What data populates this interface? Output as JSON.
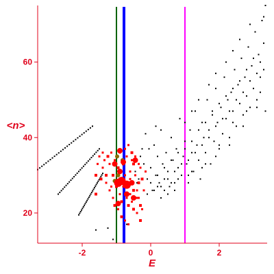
{
  "chart_data": {
    "type": "scatter",
    "title": "",
    "xlabel": "E",
    "ylabel": "<n>",
    "xlim": [
      -3.3,
      3.4
    ],
    "ylim": [
      12,
      75
    ],
    "xticks": [
      -2,
      0,
      2
    ],
    "xtick_labels": [
      "-2",
      "0",
      "2"
    ],
    "yticks": [
      20,
      40,
      60
    ],
    "ytick_labels": [
      "20",
      "40",
      "60"
    ],
    "grid": false,
    "legend": "none",
    "colors": {
      "axes": "#e0001a",
      "black_points": "#000000",
      "red_points": "#ff0000",
      "olive_points": "#8b6a00"
    },
    "vertical_lines": [
      {
        "x": -1.0,
        "color": "#006400",
        "width": "thin"
      },
      {
        "x": -0.78,
        "color": "#0000ff",
        "width": "thick"
      },
      {
        "x": 1.0,
        "color": "#ff00ff",
        "width": "thin"
      }
    ],
    "band_series": [
      {
        "color": "#000000",
        "x_start": -3.3,
        "x_end": -1.7,
        "y_start": 31.5,
        "y_end": 43
      },
      {
        "color": "#000000",
        "x_start": -2.7,
        "x_end": -1.5,
        "y_start": 25,
        "y_end": 37
      },
      {
        "color": "#000000",
        "x_start": -2.1,
        "x_end": -1.4,
        "y_start": 19.5,
        "y_end": 30.5
      }
    ],
    "black_cloud": [
      [
        -0.45,
        31
      ],
      [
        -0.4,
        28
      ],
      [
        -0.3,
        35
      ],
      [
        -0.2,
        33
      ],
      [
        -0.15,
        41
      ],
      [
        -0.1,
        29
      ],
      [
        -0.05,
        37
      ],
      [
        0.0,
        32
      ],
      [
        0.05,
        26
      ],
      [
        0.1,
        38
      ],
      [
        0.15,
        30
      ],
      [
        0.2,
        35
      ],
      [
        0.25,
        28
      ],
      [
        0.3,
        42
      ],
      [
        0.35,
        33
      ],
      [
        0.4,
        29
      ],
      [
        0.45,
        36
      ],
      [
        0.5,
        31
      ],
      [
        0.55,
        27
      ],
      [
        0.6,
        40
      ],
      [
        0.65,
        34
      ],
      [
        0.7,
        28
      ],
      [
        0.75,
        37
      ],
      [
        0.8,
        32
      ],
      [
        0.85,
        45
      ],
      [
        0.9,
        30
      ],
      [
        0.95,
        35
      ],
      [
        1.0,
        39
      ],
      [
        1.05,
        33
      ],
      [
        1.1,
        28
      ],
      [
        1.15,
        42
      ],
      [
        1.2,
        36
      ],
      [
        1.25,
        31
      ],
      [
        1.3,
        47
      ],
      [
        1.35,
        38
      ],
      [
        1.4,
        34
      ],
      [
        1.45,
        29
      ],
      [
        1.5,
        44
      ],
      [
        1.55,
        40
      ],
      [
        1.6,
        36
      ],
      [
        1.65,
        50
      ],
      [
        1.7,
        42
      ],
      [
        1.75,
        33
      ],
      [
        1.8,
        46
      ],
      [
        1.85,
        39
      ],
      [
        1.9,
        53
      ],
      [
        1.95,
        44
      ],
      [
        2.0,
        37
      ],
      [
        2.05,
        48
      ],
      [
        2.1,
        41
      ],
      [
        2.15,
        56
      ],
      [
        2.2,
        45
      ],
      [
        2.25,
        50
      ],
      [
        2.3,
        38
      ],
      [
        2.35,
        52
      ],
      [
        2.4,
        47
      ],
      [
        2.45,
        58
      ],
      [
        2.5,
        43
      ],
      [
        2.55,
        54
      ],
      [
        2.6,
        49
      ],
      [
        2.65,
        61
      ],
      [
        2.7,
        46
      ],
      [
        2.75,
        56
      ],
      [
        2.8,
        51
      ],
      [
        2.85,
        64
      ],
      [
        2.9,
        48
      ],
      [
        2.95,
        59
      ],
      [
        3.0,
        53
      ],
      [
        3.05,
        68
      ],
      [
        3.1,
        50
      ],
      [
        3.15,
        62
      ],
      [
        3.2,
        56
      ],
      [
        3.25,
        71
      ],
      [
        3.3,
        58
      ],
      [
        3.35,
        75
      ],
      [
        3.3,
        65
      ],
      [
        3.2,
        60
      ],
      [
        3.1,
        57
      ],
      [
        3.0,
        61
      ],
      [
        2.9,
        55
      ],
      [
        2.8,
        58
      ],
      [
        2.7,
        52
      ],
      [
        2.6,
        55
      ],
      [
        2.5,
        50
      ],
      [
        2.4,
        53
      ],
      [
        2.3,
        47
      ],
      [
        2.2,
        51
      ],
      [
        2.1,
        45
      ],
      [
        2.0,
        49
      ],
      [
        1.9,
        43
      ],
      [
        1.8,
        47
      ],
      [
        1.7,
        40
      ],
      [
        1.6,
        44
      ],
      [
        1.5,
        38
      ],
      [
        1.4,
        42
      ],
      [
        1.3,
        36
      ],
      [
        1.2,
        39
      ],
      [
        1.1,
        34
      ],
      [
        1.0,
        37
      ],
      [
        0.9,
        33
      ],
      [
        0.8,
        36
      ],
      [
        0.7,
        31
      ],
      [
        0.6,
        34
      ],
      [
        0.5,
        29
      ],
      [
        0.4,
        32
      ],
      [
        0.3,
        27
      ],
      [
        0.2,
        30
      ],
      [
        0.1,
        26
      ],
      [
        0.0,
        28
      ],
      [
        -0.1,
        25
      ],
      [
        0.2,
        27
      ],
      [
        0.4,
        26
      ],
      [
        0.6,
        28
      ],
      [
        0.8,
        29
      ],
      [
        1.2,
        31
      ],
      [
        1.6,
        33
      ],
      [
        2.0,
        38
      ],
      [
        2.4,
        44
      ],
      [
        2.8,
        47
      ],
      [
        3.2,
        52
      ],
      [
        0.3,
        24
      ],
      [
        0.5,
        25
      ],
      [
        0.7,
        26
      ],
      [
        1.1,
        30
      ],
      [
        1.5,
        32
      ],
      [
        1.9,
        35
      ],
      [
        2.3,
        40
      ],
      [
        2.7,
        43
      ],
      [
        3.1,
        48
      ],
      [
        3.35,
        47
      ],
      [
        2.6,
        66
      ],
      [
        2.4,
        63
      ],
      [
        2.9,
        70
      ],
      [
        3.3,
        72
      ],
      [
        2.2,
        60
      ],
      [
        1.9,
        57
      ],
      [
        1.7,
        54
      ],
      [
        1.4,
        50
      ],
      [
        1.2,
        47
      ],
      [
        1.0,
        44
      ],
      [
        -0.7,
        17
      ],
      [
        -1.1,
        13
      ],
      [
        -1.25,
        16
      ],
      [
        -1.6,
        15.5
      ],
      [
        -0.35,
        29
      ],
      [
        -0.25,
        37
      ],
      [
        0.15,
        43
      ],
      [
        -0.55,
        36
      ]
    ],
    "red_cluster": [
      [
        -1.25,
        35
      ],
      [
        -1.2,
        33
      ],
      [
        -1.15,
        36
      ],
      [
        -1.1,
        30
      ],
      [
        -1.05,
        34
      ],
      [
        -1.0,
        28
      ],
      [
        -0.95,
        32
      ],
      [
        -0.9,
        36
      ],
      [
        -0.85,
        29
      ],
      [
        -0.8,
        33
      ],
      [
        -0.75,
        30
      ],
      [
        -0.7,
        35
      ],
      [
        -0.65,
        27
      ],
      [
        -0.6,
        31
      ],
      [
        -0.55,
        34
      ],
      [
        -0.5,
        26
      ],
      [
        -0.45,
        30
      ],
      [
        -0.4,
        24
      ],
      [
        -0.35,
        28
      ],
      [
        -0.3,
        32
      ],
      [
        -0.9,
        25
      ],
      [
        -0.85,
        23
      ],
      [
        -0.8,
        27
      ],
      [
        -0.7,
        24
      ],
      [
        -0.65,
        22
      ],
      [
        -0.6,
        25
      ],
      [
        -0.55,
        23
      ],
      [
        -0.5,
        21
      ],
      [
        -0.45,
        24
      ],
      [
        -0.4,
        20
      ],
      [
        -1.0,
        27
      ],
      [
        -1.1,
        24
      ],
      [
        -1.2,
        26
      ],
      [
        -1.3,
        30
      ],
      [
        -1.35,
        34
      ],
      [
        -1.4,
        32
      ],
      [
        -1.45,
        29
      ],
      [
        -1.5,
        35
      ],
      [
        -1.55,
        33
      ],
      [
        -1.6,
        30
      ],
      [
        -0.75,
        37
      ],
      [
        -0.65,
        38
      ],
      [
        -0.55,
        36
      ],
      [
        -0.45,
        35
      ],
      [
        -0.35,
        33
      ],
      [
        -0.25,
        29
      ],
      [
        -0.2,
        26
      ],
      [
        -0.15,
        31
      ],
      [
        -0.3,
        22
      ],
      [
        -0.25,
        21
      ],
      [
        -0.95,
        21
      ],
      [
        -0.85,
        19
      ],
      [
        -0.75,
        18
      ],
      [
        -0.65,
        17
      ],
      [
        -1.05,
        22
      ],
      [
        -1.15,
        27
      ],
      [
        -0.6,
        29
      ],
      [
        -0.5,
        33
      ],
      [
        -0.4,
        26
      ],
      [
        -0.35,
        24
      ],
      [
        -1.6,
        25
      ],
      [
        -1.4,
        36
      ],
      [
        -1.3,
        28
      ],
      [
        -0.3,
        18
      ]
    ],
    "red_large": [
      [
        -0.95,
        28
      ],
      [
        -0.85,
        28.5
      ],
      [
        -0.7,
        27.5
      ],
      [
        -0.9,
        31
      ],
      [
        -0.8,
        33.5
      ],
      [
        -1.05,
        33
      ],
      [
        -0.9,
        36.5
      ],
      [
        -0.45,
        34
      ],
      [
        -0.55,
        28
      ],
      [
        -0.95,
        22.5
      ],
      [
        -0.5,
        24
      ],
      [
        -0.7,
        25
      ]
    ],
    "olive_points": [
      [
        -1.05,
        28.5
      ],
      [
        -0.98,
        35
      ],
      [
        -0.82,
        34
      ],
      [
        -0.95,
        30
      ]
    ]
  }
}
